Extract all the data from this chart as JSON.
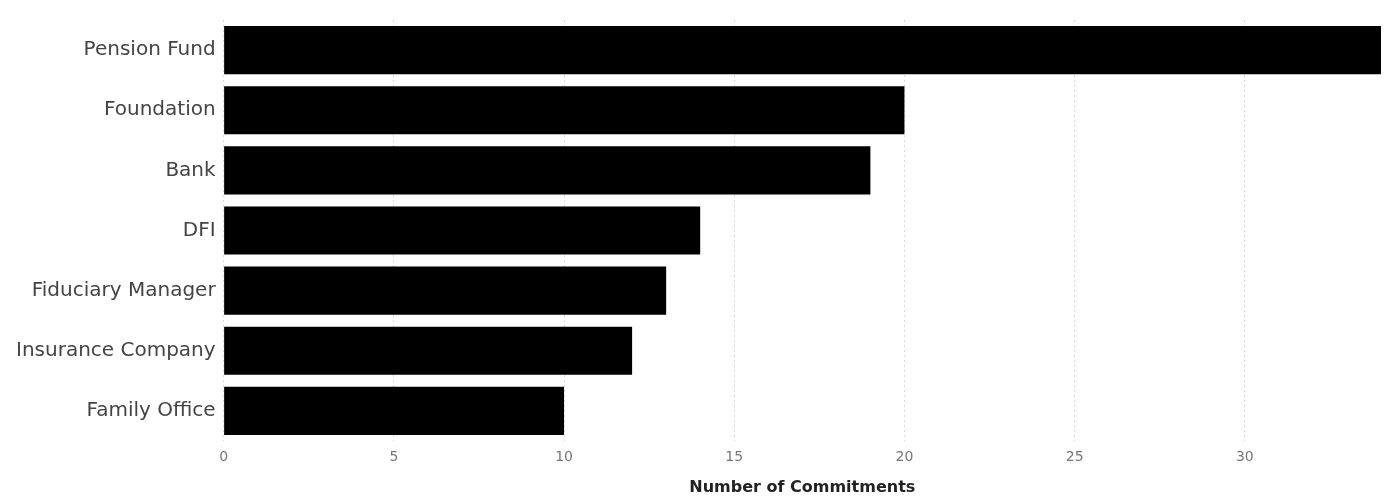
{
  "chart_data": {
    "type": "bar",
    "orientation": "horizontal",
    "xlabel": "Number of Commitments",
    "categories": [
      "Pension Fund",
      "Foundation",
      "Bank",
      "DFI",
      "Fiduciary Manager",
      "Insurance Company",
      "Family Office"
    ],
    "values": [
      34,
      20,
      19,
      14,
      13,
      12,
      10
    ],
    "color": "#000000",
    "xlim": [
      0,
      34
    ],
    "xticks": [
      0,
      5,
      10,
      15,
      20,
      25,
      30
    ],
    "grid": "x"
  }
}
